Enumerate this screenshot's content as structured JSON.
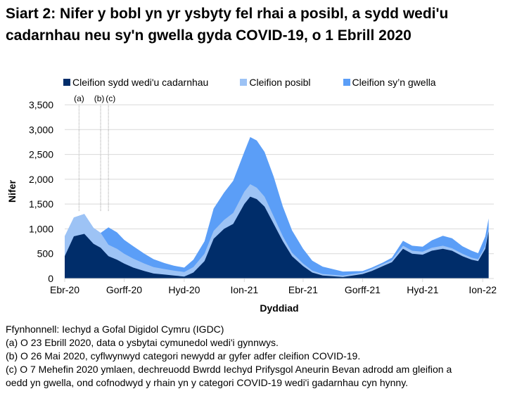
{
  "title": "Siart 2: Nifer y bobl yn yr ysbyty fel rhai a posibl, a sydd wedi'u cadarnhau neu sy'n gwella gyda COVID-19, o 1 Ebrill 2020",
  "colors": {
    "confirmed": "#002d6a",
    "suspected": "#9dc3f5",
    "recovering": "#5b9ef7",
    "grid": "#d9d9d9"
  },
  "legend": [
    {
      "label": "Cleifion sydd wedi'u cadarnhau",
      "color": "#002d6a"
    },
    {
      "label": "Cleifion posibl",
      "color": "#9dc3f5"
    },
    {
      "label": "Cleifion sy’n gwella",
      "color": "#5b9ef7"
    }
  ],
  "annotations": [
    {
      "label": "(a)",
      "date": "2020-04-23"
    },
    {
      "label": "(b)",
      "date": "2020-05-26"
    },
    {
      "label": "(c)",
      "date": "2020-06-07"
    }
  ],
  "notes": {
    "source": "Ffynhonnell: Iechyd a Gofal Digidol Cymru (IGDC)",
    "a": "(a) O 23 Ebrill 2020, data o ysbytai cymunedol wedi'i gynnwys.",
    "b": "(b) O 26 Mai 2020, cyflwynwyd categori newydd ar gyfer adfer cleifion COVID-19.",
    "c1": "(c) O 7 Mehefin 2020 ymlaen, dechreuodd Bwrdd Iechyd Prifysgol Aneurin Bevan adrodd am gleifion a",
    "c2": "oedd yn gwella, ond cofnodwyd y rhain yn y categori COVID-19 wedi'i gadarnhau cyn hynny."
  },
  "chart_data": {
    "type": "area",
    "stacked": true,
    "title": "Siart 2: Nifer y bobl yn yr ysbyty fel rhai a posibl, a sydd wedi'u cadarnhau neu sy'n gwella gyda COVID-19, o 1 Ebrill 2020",
    "xlabel": "Dyddiad",
    "ylabel": "Nifer",
    "ylim": [
      0,
      3500
    ],
    "yticks": [
      "0",
      "500",
      "1,000",
      "1,500",
      "2,000",
      "2,500",
      "3,000",
      "3,500"
    ],
    "xticks": [
      "Ebr-20",
      "Gorff-20",
      "Hyd-20",
      "Ion-21",
      "Ebr-21",
      "Gorff-21",
      "Hyd-21",
      "Ion-22"
    ],
    "grid": true,
    "legend_position": "top",
    "x": [
      "2020-04-01",
      "2020-04-15",
      "2020-05-01",
      "2020-05-15",
      "2020-05-26",
      "2020-06-07",
      "2020-06-20",
      "2020-07-01",
      "2020-07-15",
      "2020-08-01",
      "2020-08-15",
      "2020-09-01",
      "2020-09-15",
      "2020-10-01",
      "2020-10-15",
      "2020-11-01",
      "2020-11-15",
      "2020-12-01",
      "2020-12-15",
      "2021-01-01",
      "2021-01-10",
      "2021-01-20",
      "2021-02-01",
      "2021-02-15",
      "2021-03-01",
      "2021-03-15",
      "2021-04-01",
      "2021-04-15",
      "2021-05-01",
      "2021-06-01",
      "2021-07-01",
      "2021-07-15",
      "2021-08-01",
      "2021-08-15",
      "2021-09-01",
      "2021-09-15",
      "2021-10-01",
      "2021-10-15",
      "2021-11-01",
      "2021-11-15",
      "2021-12-01",
      "2021-12-15",
      "2021-12-25",
      "2022-01-05",
      "2022-01-10"
    ],
    "series": [
      {
        "name": "Cleifion sydd wedi'u cadarnhau",
        "values": [
          450,
          850,
          900,
          700,
          620,
          450,
          380,
          300,
          220,
          150,
          100,
          80,
          60,
          40,
          120,
          350,
          800,
          1000,
          1100,
          1500,
          1650,
          1600,
          1450,
          1100,
          750,
          450,
          250,
          120,
          60,
          30,
          90,
          150,
          250,
          330,
          600,
          500,
          480,
          560,
          600,
          560,
          450,
          380,
          350,
          600,
          950
        ]
      },
      {
        "name": "Cleifion posibl",
        "values": [
          400,
          380,
          400,
          320,
          300,
          230,
          220,
          200,
          180,
          150,
          130,
          110,
          100,
          90,
          110,
          150,
          160,
          180,
          220,
          250,
          250,
          230,
          200,
          150,
          100,
          70,
          50,
          40,
          30,
          30,
          30,
          40,
          40,
          40,
          60,
          60,
          60,
          60,
          60,
          50,
          50,
          40,
          40,
          50,
          60
        ]
      },
      {
        "name": "Cleifion sy’n gwella",
        "values": [
          0,
          0,
          0,
          0,
          0,
          350,
          330,
          280,
          250,
          200,
          160,
          120,
          100,
          90,
          150,
          250,
          450,
          550,
          650,
          800,
          950,
          950,
          900,
          800,
          600,
          450,
          300,
          200,
          150,
          80,
          30,
          30,
          30,
          50,
          100,
          100,
          100,
          150,
          200,
          200,
          150,
          140,
          120,
          200,
          200
        ]
      }
    ]
  }
}
